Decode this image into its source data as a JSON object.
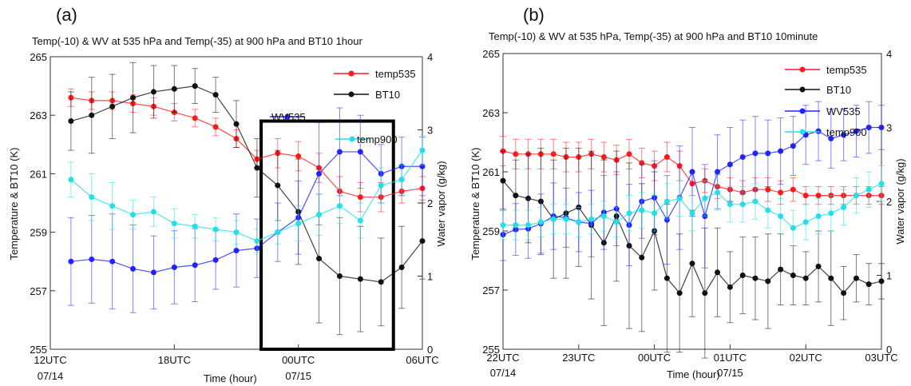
{
  "colors": {
    "temp535": "#ff1a1a",
    "BT10": "#111111",
    "WV535": "#2222ff",
    "temp900": "#22e0e8"
  },
  "chart_data": [
    {
      "type": "line",
      "panel_label": "(a)",
      "title": "Temp(-10) & WV at 535 hPa and Temp(-35) at 900 hPa and BT10 1hour",
      "xlabel": "Time (hour)",
      "ylabel": "Temperature & BT10 (K)",
      "y2label": "Water vapor (g/kg)",
      "xlim": [
        12,
        30
      ],
      "ylim": [
        255,
        265
      ],
      "y2lim": [
        0,
        4
      ],
      "yticks": [
        255,
        257,
        259,
        261,
        263,
        265
      ],
      "y2ticks": [
        0,
        1,
        2,
        3,
        4
      ],
      "xticks": [
        {
          "x": 12,
          "label": "12UTC",
          "sublabel": "07/14"
        },
        {
          "x": 18,
          "label": "18UTC",
          "sublabel": ""
        },
        {
          "x": 24,
          "label": "00UTC",
          "sublabel": "07/15"
        },
        {
          "x": 30,
          "label": "06UTC",
          "sublabel": ""
        }
      ],
      "highlight_box": {
        "x_range": [
          22.2,
          28.6
        ],
        "y_range": [
          255,
          262.8
        ]
      },
      "legend_position": "top-right",
      "x": [
        13,
        14,
        15,
        16,
        17,
        18,
        19,
        20,
        21,
        22,
        23,
        24,
        25,
        26,
        27,
        28,
        29,
        30
      ],
      "series": [
        {
          "name": "temp535",
          "axis": "left",
          "values": [
            263.6,
            263.5,
            263.5,
            263.4,
            263.3,
            263.1,
            262.9,
            262.6,
            262.2,
            261.5,
            261.7,
            261.6,
            261.2,
            260.4,
            260.2,
            260.2,
            260.4,
            260.5
          ],
          "err": [
            0.3,
            0.3,
            0.3,
            0.3,
            0.3,
            0.3,
            0.3,
            0.3,
            0.3,
            0.3,
            0.5,
            0.5,
            0.5,
            0.5,
            0.5,
            0.5,
            0.4,
            0.4
          ]
        },
        {
          "name": "BT10",
          "axis": "left",
          "values": [
            262.8,
            263.0,
            263.3,
            263.6,
            263.8,
            263.9,
            264.0,
            263.7,
            262.7,
            261.2,
            260.6,
            259.7,
            258.1,
            257.5,
            257.4,
            257.3,
            257.8,
            258.7
          ],
          "err": [
            1.0,
            1.3,
            1.1,
            1.2,
            0.9,
            0.8,
            0.6,
            0.6,
            0.8,
            1.0,
            1.2,
            1.8,
            2.2,
            2.0,
            1.8,
            1.5,
            1.4,
            1.3
          ]
        },
        {
          "name": "WV535",
          "axis": "right",
          "values": [
            1.2,
            1.23,
            1.2,
            1.1,
            1.05,
            1.12,
            1.15,
            1.22,
            1.35,
            1.38,
            1.6,
            1.8,
            2.4,
            2.7,
            2.7,
            2.4,
            2.5,
            2.5
          ],
          "err": [
            0.6,
            0.6,
            0.65,
            0.6,
            0.5,
            0.5,
            0.5,
            0.4,
            0.5,
            0.4,
            0.4,
            0.5,
            0.7,
            0.6,
            0.5,
            0.4,
            0.4,
            0.4
          ]
        },
        {
          "name": "temp900",
          "axis": "left",
          "values": [
            260.8,
            260.2,
            259.9,
            259.6,
            259.7,
            259.3,
            259.2,
            259.1,
            259.0,
            258.7,
            259.0,
            259.3,
            259.6,
            259.9,
            259.4,
            260.6,
            260.8,
            261.8
          ],
          "err": [
            0.6,
            0.8,
            0.8,
            0.5,
            0.5,
            0.5,
            0.4,
            0.4,
            0.4,
            0.4,
            0.4,
            0.6,
            0.7,
            0.6,
            0.6,
            0.6,
            0.5,
            0.5
          ]
        }
      ]
    },
    {
      "type": "line",
      "panel_label": "(b)",
      "title": "Temp(-10) & WV at 535 hPa, Temp(-35) at 900 hPa and BT10 10minute",
      "xlabel": "Time (hour)",
      "ylabel": "Temperature & BT10 (K)",
      "y2label": "Water vapor (g/kg)",
      "xlim": [
        22,
        27
      ],
      "ylim": [
        255,
        265
      ],
      "y2lim": [
        0,
        4
      ],
      "yticks": [
        255,
        257,
        259,
        261,
        263,
        265
      ],
      "y2ticks": [
        0,
        1,
        2,
        3,
        4
      ],
      "xticks": [
        {
          "x": 22,
          "label": "22UTC",
          "sublabel": "07/14"
        },
        {
          "x": 23,
          "label": "23UTC",
          "sublabel": ""
        },
        {
          "x": 24,
          "label": "00UTC",
          "sublabel": ""
        },
        {
          "x": 25,
          "label": "01UTC",
          "sublabel": "07/15"
        },
        {
          "x": 26,
          "label": "02UTC",
          "sublabel": ""
        },
        {
          "x": 27,
          "label": "03UTC",
          "sublabel": ""
        }
      ],
      "legend_position": "top-right",
      "x": [
        22.0,
        22.167,
        22.333,
        22.5,
        22.667,
        22.833,
        23.0,
        23.167,
        23.333,
        23.5,
        23.667,
        23.833,
        24.0,
        24.167,
        24.333,
        24.5,
        24.667,
        24.833,
        25.0,
        25.167,
        25.333,
        25.5,
        25.667,
        25.833,
        26.0,
        26.167,
        26.333,
        26.5,
        26.667,
        26.833,
        27.0
      ],
      "series": [
        {
          "name": "temp535",
          "axis": "left",
          "values": [
            261.7,
            261.6,
            261.6,
            261.6,
            261.6,
            261.5,
            261.5,
            261.6,
            261.5,
            261.4,
            261.6,
            261.3,
            261.2,
            261.5,
            261.2,
            260.6,
            260.7,
            260.5,
            260.4,
            260.3,
            260.4,
            260.4,
            260.3,
            260.4,
            260.2,
            260.2,
            260.2,
            260.2,
            260.2,
            260.2,
            260.2
          ],
          "err": [
            0.5,
            0.5,
            0.5,
            0.5,
            0.5,
            0.5,
            0.5,
            0.5,
            0.5,
            0.5,
            0.5,
            0.5,
            0.5,
            0.5,
            0.5,
            0.4,
            0.4,
            0.4,
            0.4,
            0.4,
            0.4,
            0.4,
            0.4,
            0.4,
            0.3,
            0.3,
            0.3,
            0.3,
            0.3,
            0.3,
            0.3
          ]
        },
        {
          "name": "BT10",
          "axis": "left",
          "values": [
            260.7,
            260.2,
            260.1,
            260.0,
            259.4,
            259.6,
            259.8,
            259.2,
            258.6,
            259.5,
            258.5,
            258.1,
            259.0,
            257.4,
            256.9,
            257.9,
            256.9,
            257.6,
            257.1,
            257.5,
            257.4,
            257.3,
            257.7,
            257.5,
            257.4,
            257.8,
            257.4,
            256.9,
            257.4,
            257.2,
            257.3
          ],
          "err": [
            1.0,
            1.2,
            1.5,
            1.8,
            2.0,
            2.2,
            2.0,
            2.5,
            2.8,
            2.2,
            2.8,
            2.5,
            2.0,
            2.5,
            2.0,
            1.8,
            2.2,
            1.5,
            1.2,
            1.3,
            1.4,
            1.6,
            1.2,
            1.0,
            0.9,
            1.2,
            1.6,
            0.9,
            0.8,
            0.7,
            0.6
          ]
        },
        {
          "name": "WV535",
          "axis": "right",
          "values": [
            1.55,
            1.62,
            1.63,
            1.7,
            1.8,
            1.78,
            1.72,
            1.7,
            1.85,
            1.9,
            1.68,
            2.0,
            2.05,
            1.75,
            2.05,
            2.4,
            1.8,
            2.4,
            2.5,
            2.6,
            2.65,
            2.65,
            2.68,
            2.75,
            2.9,
            2.95,
            2.85,
            2.9,
            2.95,
            3.0,
            3.0
          ],
          "err": [
            0.35,
            0.35,
            0.4,
            0.4,
            0.45,
            0.4,
            0.4,
            0.45,
            0.5,
            0.5,
            0.55,
            0.5,
            0.5,
            0.6,
            0.7,
            0.6,
            0.7,
            0.5,
            0.5,
            0.5,
            0.5,
            0.45,
            0.45,
            0.4,
            0.4,
            0.4,
            0.4,
            0.35,
            0.35,
            0.35,
            0.3
          ]
        },
        {
          "name": "temp900",
          "axis": "left",
          "values": [
            259.2,
            259.2,
            259.2,
            259.3,
            259.4,
            259.4,
            259.3,
            259.4,
            259.5,
            259.3,
            259.6,
            259.7,
            259.6,
            260.0,
            260.1,
            259.6,
            260.1,
            260.3,
            259.9,
            259.9,
            260.0,
            259.7,
            259.5,
            259.1,
            259.3,
            259.5,
            259.6,
            259.8,
            260.2,
            260.4,
            260.6
          ],
          "err": [
            0.5,
            0.5,
            0.5,
            0.5,
            0.5,
            0.5,
            0.5,
            0.5,
            0.5,
            0.5,
            0.6,
            0.6,
            0.6,
            0.6,
            0.6,
            0.6,
            0.6,
            0.6,
            0.6,
            0.6,
            0.6,
            0.6,
            0.6,
            0.6,
            0.6,
            0.6,
            0.6,
            0.6,
            0.6,
            0.6,
            0.6
          ]
        }
      ]
    }
  ]
}
